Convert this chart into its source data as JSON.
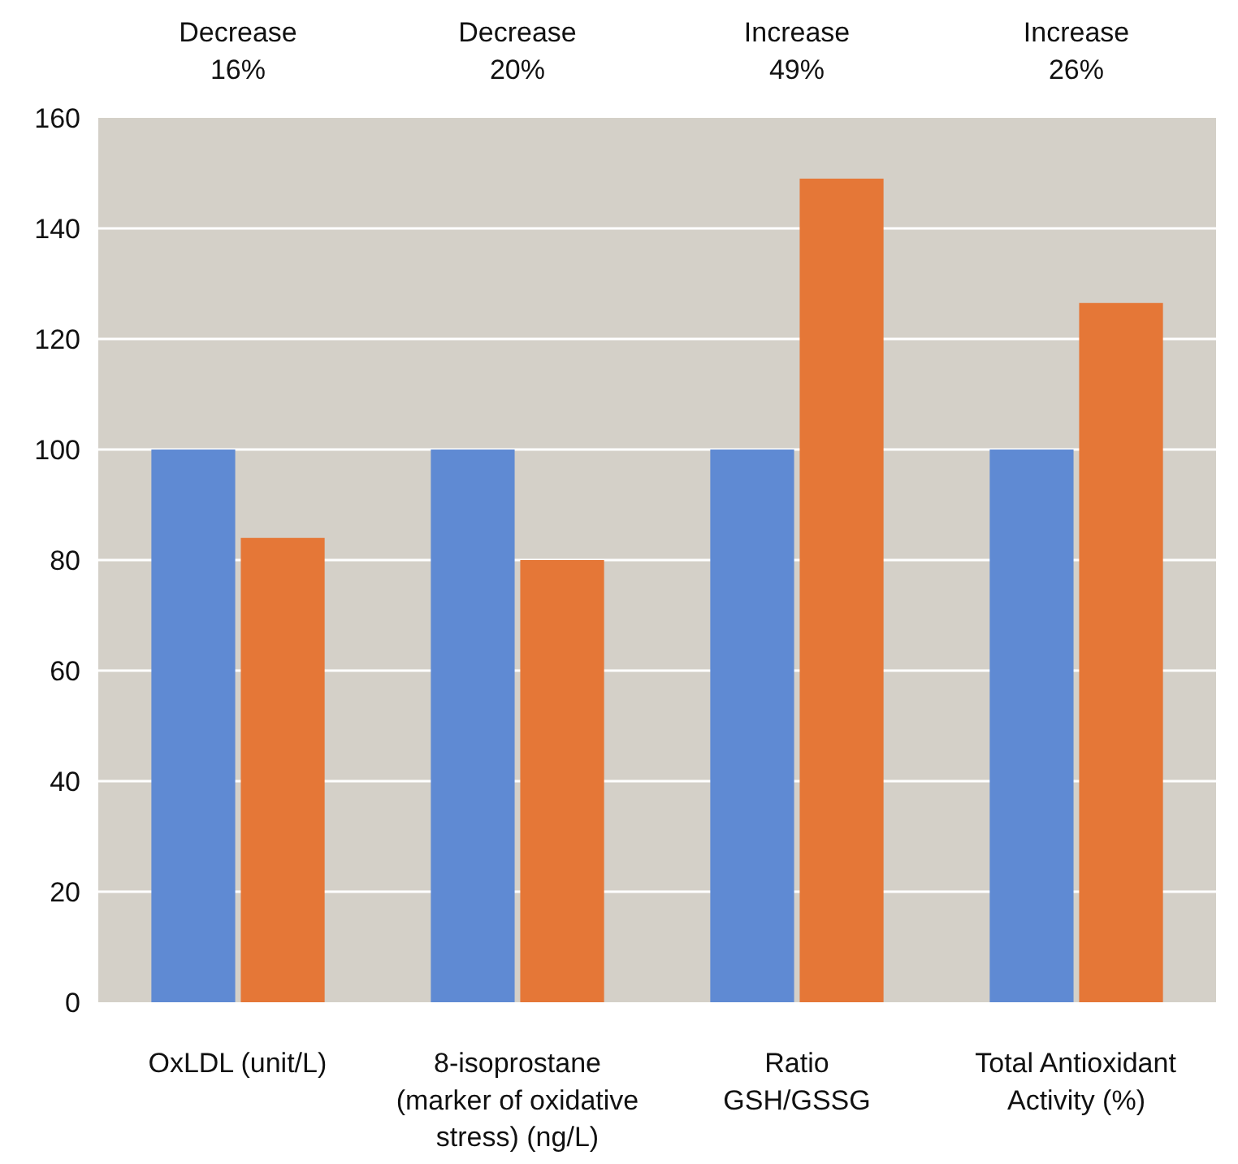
{
  "chart_data": {
    "type": "bar",
    "categories": [
      "OxLDL (unit/L)",
      "8-isoprostane\n(marker of oxidative\nstress) (ng/L)",
      "Ratio\nGSH/GSSG",
      "Total Antioxidant\nActivity (%)"
    ],
    "series": [
      {
        "color": "#5f8ad3",
        "values": [
          100,
          100,
          100,
          100
        ]
      },
      {
        "color": "#e57737",
        "values": [
          84,
          80,
          149,
          126.5
        ]
      }
    ],
    "ylim": [
      0,
      160
    ],
    "yticks": [
      0,
      20,
      40,
      60,
      80,
      100,
      120,
      140,
      160
    ],
    "grid": "y",
    "annotations": [
      "Decrease\n16%",
      "Decrease\n20%",
      "Increase\n49%",
      "Increase\n26%"
    ]
  }
}
